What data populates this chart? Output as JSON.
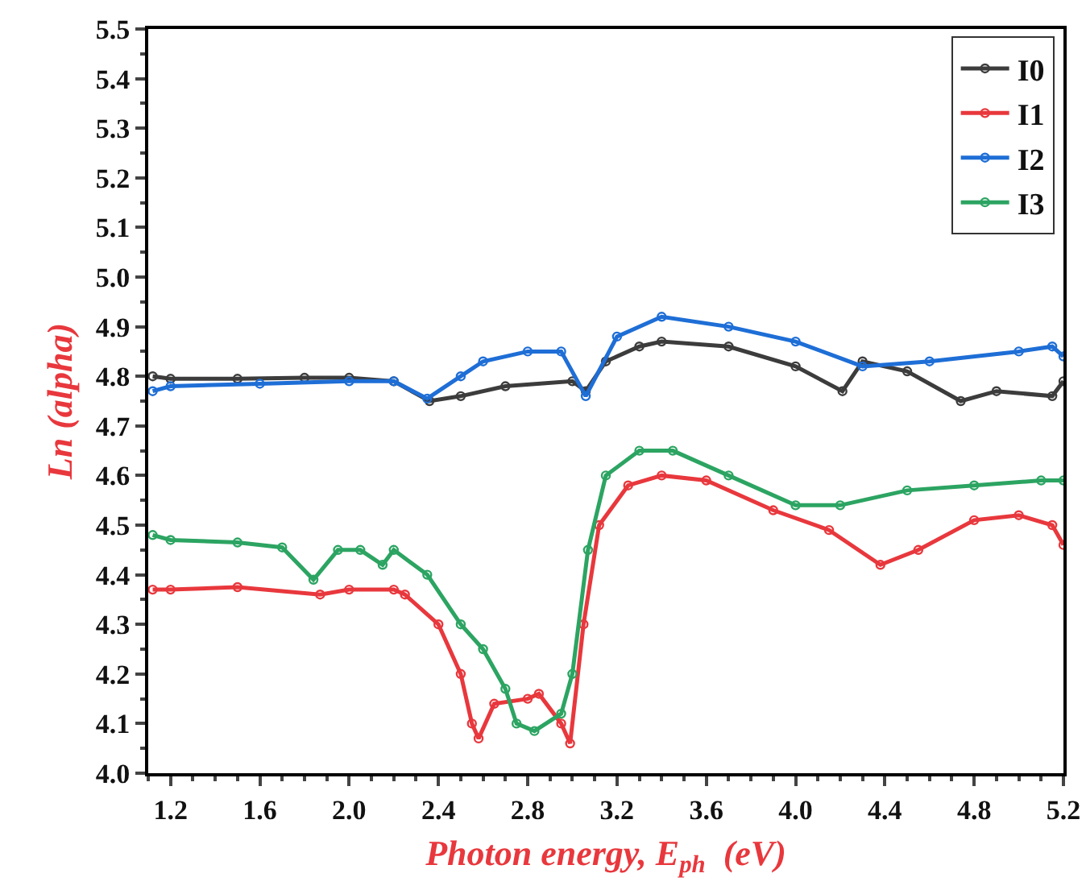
{
  "chart_data": {
    "type": "line",
    "xlabel": "Photon energy, E$_{ph}$  (eV)",
    "ylabel": "Ln (alpha)",
    "xlim": [
      1.1,
      5.2
    ],
    "xticks": [
      1.2,
      1.6,
      {
        "value": 2.0,
        "label": "2.0"
      },
      2.4,
      2.8,
      3.2,
      3.6,
      {
        "value": 4.0,
        "label": "4.0"
      },
      4.4,
      4.8,
      5.2
    ],
    "ylim": [
      4.0,
      5.5
    ],
    "yticks": [
      {
        "value": 4.0,
        "label": "4.0"
      },
      4.1,
      4.2,
      4.3,
      4.4,
      4.5,
      4.6,
      4.7,
      4.8,
      4.9,
      {
        "value": 5.0,
        "label": "5.0"
      },
      5.1,
      5.2,
      5.3,
      5.4,
      5.5
    ],
    "grid": false,
    "legend": "top right",
    "marker": "circle",
    "line_style": "solid",
    "series": [
      {
        "name": "I0",
        "color": "#3c3c3c",
        "x": [
          1.12,
          1.2,
          1.5,
          1.8,
          2.0,
          2.2,
          2.36,
          2.5,
          2.7,
          3.0,
          3.06,
          3.15,
          3.3,
          3.4,
          3.7,
          4.0,
          4.21,
          4.3,
          4.5,
          4.74,
          4.9,
          5.15,
          5.2
        ],
        "values": [
          4.8,
          4.795,
          4.795,
          4.797,
          4.797,
          4.79,
          4.75,
          4.76,
          4.78,
          4.79,
          4.77,
          4.83,
          4.86,
          4.87,
          4.86,
          4.82,
          4.77,
          4.83,
          4.81,
          4.75,
          4.77,
          4.76,
          4.79
        ]
      },
      {
        "name": "I1",
        "color": "#e8383d",
        "x": [
          1.12,
          1.2,
          1.5,
          1.87,
          2.0,
          2.2,
          2.25,
          2.4,
          2.5,
          2.55,
          2.58,
          2.65,
          2.8,
          2.85,
          2.95,
          2.99,
          3.05,
          3.12,
          3.25,
          3.4,
          3.6,
          3.9,
          4.15,
          4.38,
          4.55,
          4.8,
          5.0,
          5.15,
          5.2
        ],
        "values": [
          4.37,
          4.37,
          4.375,
          4.36,
          4.37,
          4.37,
          4.36,
          4.3,
          4.2,
          4.1,
          4.07,
          4.14,
          4.15,
          4.16,
          4.1,
          4.06,
          4.3,
          4.5,
          4.58,
          4.6,
          4.59,
          4.53,
          4.49,
          4.42,
          4.45,
          4.51,
          4.52,
          4.5,
          4.46
        ]
      },
      {
        "name": "I2",
        "color": "#1e6ed6",
        "x": [
          1.12,
          1.2,
          1.6,
          2.0,
          2.2,
          2.35,
          2.5,
          2.6,
          2.8,
          2.95,
          3.06,
          3.2,
          3.4,
          3.7,
          4.0,
          4.3,
          4.6,
          5.0,
          5.15,
          5.2
        ],
        "values": [
          4.77,
          4.78,
          4.785,
          4.79,
          4.79,
          4.755,
          4.8,
          4.83,
          4.85,
          4.85,
          4.76,
          4.88,
          4.92,
          4.9,
          4.87,
          4.82,
          4.83,
          4.85,
          4.86,
          4.84
        ]
      },
      {
        "name": "I3",
        "color": "#2ca462",
        "x": [
          1.12,
          1.2,
          1.5,
          1.7,
          1.84,
          1.95,
          2.05,
          2.15,
          2.2,
          2.35,
          2.5,
          2.6,
          2.7,
          2.75,
          2.83,
          2.95,
          3.0,
          3.07,
          3.15,
          3.3,
          3.45,
          3.7,
          4.0,
          4.2,
          4.5,
          4.8,
          5.1,
          5.2
        ],
        "values": [
          4.48,
          4.47,
          4.465,
          4.455,
          4.39,
          4.45,
          4.45,
          4.42,
          4.45,
          4.4,
          4.3,
          4.25,
          4.17,
          4.1,
          4.085,
          4.12,
          4.2,
          4.45,
          4.6,
          4.65,
          4.65,
          4.6,
          4.54,
          4.54,
          4.57,
          4.58,
          4.59,
          4.59
        ]
      }
    ]
  }
}
